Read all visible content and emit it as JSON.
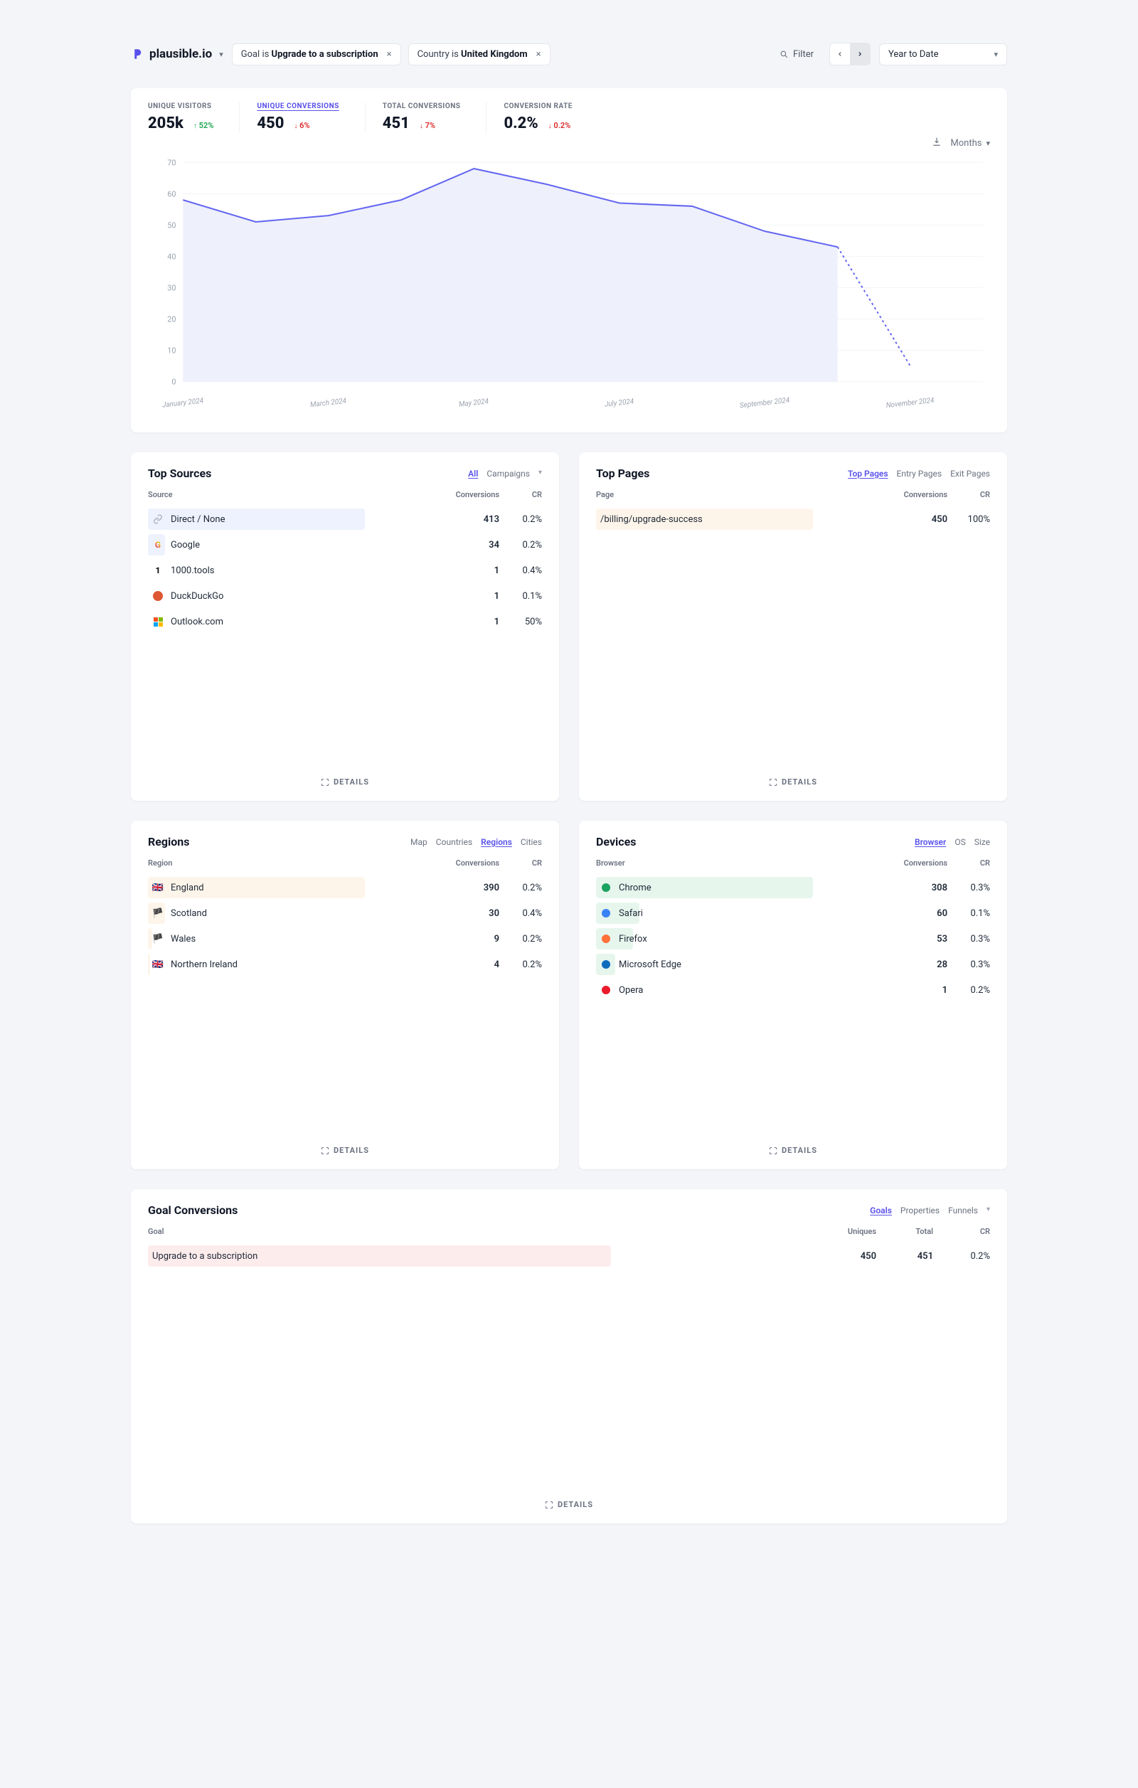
{
  "site": {
    "name": "plausible.io",
    "logo_color": "#5850ec"
  },
  "filters": [
    {
      "prefix": "Goal is ",
      "value": "Upgrade to a subscription"
    },
    {
      "prefix": "Country is ",
      "value": "United Kingdom"
    }
  ],
  "filter_label": "Filter",
  "period": "Year to Date",
  "interval": "Months",
  "metrics": [
    {
      "label": "UNIQUE VISITORS",
      "value": "205k",
      "change": "52%",
      "dir": "up"
    },
    {
      "label": "UNIQUE CONVERSIONS",
      "value": "450",
      "change": "6%",
      "dir": "down",
      "active": true
    },
    {
      "label": "TOTAL CONVERSIONS",
      "value": "451",
      "change": "7%",
      "dir": "down"
    },
    {
      "label": "CONVERSION RATE",
      "value": "0.2%",
      "change": "0.2%",
      "dir": "down"
    }
  ],
  "chart": {
    "y_ticks": [
      0,
      10,
      20,
      30,
      40,
      50,
      60,
      70
    ],
    "y_max": 70,
    "x_labels": [
      "January 2024",
      "",
      "March 2024",
      "",
      "May 2024",
      "",
      "July 2024",
      "",
      "September 2024",
      "",
      "November 2024",
      ""
    ],
    "series": [
      58,
      51,
      53,
      58,
      68,
      63,
      57,
      56,
      48,
      43
    ],
    "drop_to": 5,
    "line_color": "#6366f1",
    "area_color": "#eef0fb",
    "bg": "#ffffff",
    "grid_color": "#f3f4f6"
  },
  "sources": {
    "title": "Top Sources",
    "tabs": [
      "All",
      "Campaigns"
    ],
    "active_tab": "All",
    "col_lead": "Source",
    "col_conv": "Conversions",
    "col_cr": "CR",
    "rows": [
      {
        "name": "Direct / None",
        "conv": "413",
        "cr": "0.2%",
        "bar_pct": 100,
        "icon": "link"
      },
      {
        "name": "Google",
        "conv": "34",
        "cr": "0.2%",
        "bar_pct": 8,
        "icon": "google"
      },
      {
        "name": "1000.tools",
        "conv": "1",
        "cr": "0.4%",
        "bar_pct": 0,
        "icon": "tools"
      },
      {
        "name": "DuckDuckGo",
        "conv": "1",
        "cr": "0.1%",
        "bar_pct": 0,
        "icon": "ddg"
      },
      {
        "name": "Outlook.com",
        "conv": "1",
        "cr": "50%",
        "bar_pct": 0,
        "icon": "outlook"
      }
    ]
  },
  "pages": {
    "title": "Top Pages",
    "tabs": [
      "Top Pages",
      "Entry Pages",
      "Exit Pages"
    ],
    "active_tab": "Top Pages",
    "col_lead": "Page",
    "col_conv": "Conversions",
    "col_cr": "CR",
    "rows": [
      {
        "name": "/billing/upgrade-success",
        "conv": "450",
        "cr": "100%",
        "bar_pct": 100
      }
    ]
  },
  "regions": {
    "title": "Regions",
    "tabs": [
      "Map",
      "Countries",
      "Regions",
      "Cities"
    ],
    "active_tab": "Regions",
    "col_lead": "Region",
    "col_conv": "Conversions",
    "col_cr": "CR",
    "rows": [
      {
        "name": "England",
        "conv": "390",
        "cr": "0.2%",
        "bar_pct": 100,
        "flag": "🇬🇧"
      },
      {
        "name": "Scotland",
        "conv": "30",
        "cr": "0.4%",
        "bar_pct": 8,
        "flag": "🏴"
      },
      {
        "name": "Wales",
        "conv": "9",
        "cr": "0.2%",
        "bar_pct": 2,
        "flag": "🏴"
      },
      {
        "name": "Northern Ireland",
        "conv": "4",
        "cr": "0.2%",
        "bar_pct": 1,
        "flag": "🇬🇧"
      }
    ]
  },
  "devices": {
    "title": "Devices",
    "tabs": [
      "Browser",
      "OS",
      "Size"
    ],
    "active_tab": "Browser",
    "col_lead": "Browser",
    "col_conv": "Conversions",
    "col_cr": "CR",
    "rows": [
      {
        "name": "Chrome",
        "conv": "308",
        "cr": "0.3%",
        "bar_pct": 100,
        "color": "#e6f6ed",
        "dot": "#1aa260"
      },
      {
        "name": "Safari",
        "conv": "60",
        "cr": "0.1%",
        "bar_pct": 20,
        "color": "#e6f6ed",
        "dot": "#3b82f6"
      },
      {
        "name": "Firefox",
        "conv": "53",
        "cr": "0.3%",
        "bar_pct": 17,
        "color": "#e6f6ed",
        "dot": "#ff7139"
      },
      {
        "name": "Microsoft Edge",
        "conv": "28",
        "cr": "0.3%",
        "bar_pct": 9,
        "color": "#e6f6ed",
        "dot": "#0f6cbd"
      },
      {
        "name": "Opera",
        "conv": "1",
        "cr": "0.2%",
        "bar_pct": 0,
        "color": "#e6f6ed",
        "dot": "#ea1b2c"
      }
    ]
  },
  "goals": {
    "title": "Goal Conversions",
    "tabs": [
      "Goals",
      "Properties",
      "Funnels"
    ],
    "active_tab": "Goals",
    "col_goal": "Goal",
    "col_uniques": "Uniques",
    "col_total": "Total",
    "col_cr": "CR",
    "rows": [
      {
        "name": "Upgrade to a subscription",
        "uniques": "450",
        "total": "451",
        "cr": "0.2%",
        "bar_pct": 100
      }
    ]
  },
  "details_label": "DETAILS"
}
